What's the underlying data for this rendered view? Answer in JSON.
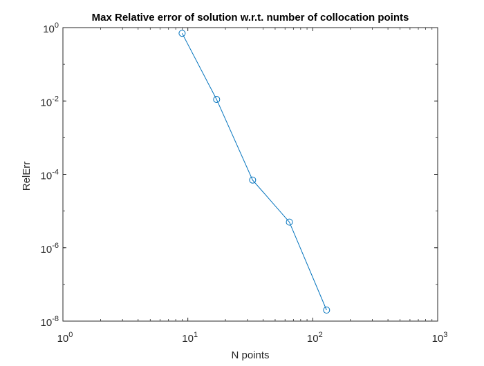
{
  "chart_data": {
    "type": "line",
    "title": "Max Relative error of solution w.r.t. number of collocation points",
    "xlabel": "N points",
    "ylabel": "RelErr",
    "x_scale": "log",
    "y_scale": "log",
    "xlim": [
      1,
      1000
    ],
    "ylim": [
      1e-08,
      1
    ],
    "grid": false,
    "x_ticks": [
      {
        "value": 1,
        "base": "10",
        "exp": "0"
      },
      {
        "value": 10,
        "base": "10",
        "exp": "1"
      },
      {
        "value": 100,
        "base": "10",
        "exp": "2"
      },
      {
        "value": 1000,
        "base": "10",
        "exp": "3"
      }
    ],
    "y_ticks": [
      {
        "value": 1,
        "base": "10",
        "exp": "0"
      },
      {
        "value": 0.01,
        "base": "10",
        "exp": "-2"
      },
      {
        "value": 0.0001,
        "base": "10",
        "exp": "-4"
      },
      {
        "value": 1e-06,
        "base": "10",
        "exp": "-6"
      },
      {
        "value": 1e-08,
        "base": "10",
        "exp": "-8"
      }
    ],
    "series": [
      {
        "color": "#0072BD",
        "marker": "circle",
        "x": [
          9,
          17,
          33,
          65,
          129
        ],
        "y": [
          0.7,
          0.011,
          7e-05,
          5e-06,
          2e-08
        ]
      }
    ]
  }
}
